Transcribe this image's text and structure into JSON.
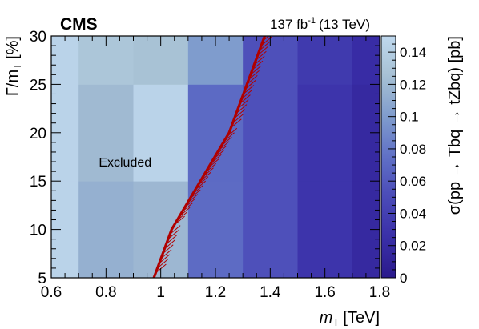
{
  "chart_data": {
    "type": "heatmap",
    "experiment_label": "CMS",
    "lumi": {
      "amount": "137 fb",
      "exponent": "-1",
      "energy": "(13 TeV)"
    },
    "xlabel": {
      "symbol": "m",
      "subscript": "T",
      "unit": "[TeV]"
    },
    "ylabel": {
      "symbol": "Γ/m",
      "subscript": "T",
      "unit": "[%]"
    },
    "zlabel": "σ(pp → Tbq → tZbq) [pb]",
    "xlim": [
      0.6,
      1.8
    ],
    "ylim": [
      5,
      30
    ],
    "zlim": [
      0,
      0.15
    ],
    "x_ticks": [
      0.6,
      0.8,
      1,
      1.2,
      1.4,
      1.6,
      1.8
    ],
    "x_tick_labels": [
      "0.6",
      "0.8",
      "1",
      "1.2",
      "1.4",
      "1.6",
      "1.8"
    ],
    "y_ticks": [
      5,
      10,
      15,
      20,
      25,
      30
    ],
    "y_tick_labels": [
      "5",
      "10",
      "15",
      "20",
      "25",
      "30"
    ],
    "z_ticks": [
      0,
      0.02,
      0.04,
      0.06,
      0.08,
      0.1,
      0.12,
      0.14
    ],
    "z_tick_labels": [
      "0",
      "0.02",
      "0.04",
      "0.06",
      "0.08",
      "0.1",
      "0.12",
      "0.14"
    ],
    "x_bin_edges": [
      0.6,
      0.7,
      0.9,
      1.1,
      1.3,
      1.5,
      1.7,
      1.8
    ],
    "y_bin_edges": [
      5,
      15,
      25,
      30
    ],
    "z_values": [
      [
        0.145,
        0.114,
        0.119,
        0.072,
        0.054,
        0.03,
        0.018
      ],
      [
        0.145,
        0.121,
        0.145,
        0.071,
        0.054,
        0.03,
        0.018
      ],
      [
        0.145,
        0.131,
        0.127,
        0.1,
        0.054,
        0.035,
        0.022
      ]
    ],
    "exclusion_curve": {
      "x": [
        0.975,
        1.04,
        1.25,
        1.38
      ],
      "y": [
        5,
        10,
        20,
        30
      ],
      "color": "#b00000",
      "hatch_side": "right"
    },
    "annotations": [
      {
        "text": "Excluded",
        "x": 0.87,
        "y": 17
      }
    ],
    "colormap": [
      "#2a1a8c",
      "#3a2fa8",
      "#4a4ab8",
      "#6070c6",
      "#7f9ccd",
      "#a6c0d3",
      "#bfd8ee"
    ]
  }
}
